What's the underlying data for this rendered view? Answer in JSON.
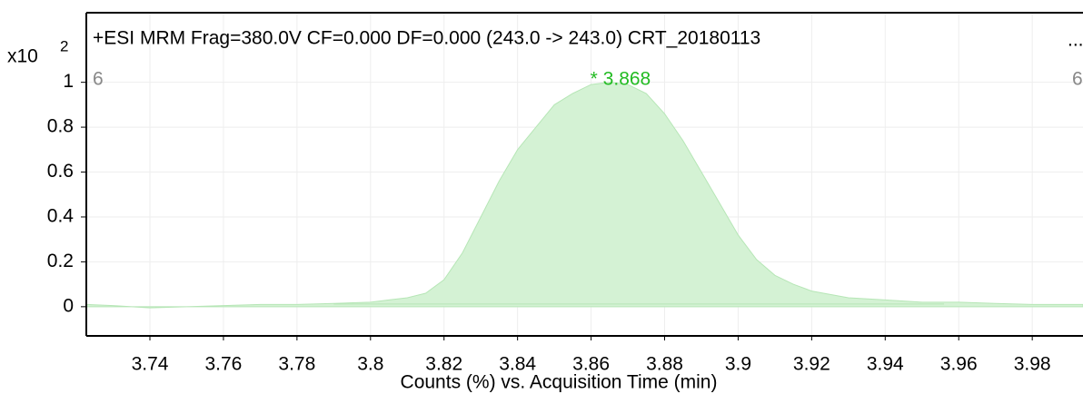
{
  "chart_data": {
    "type": "area",
    "title": "+ESI MRM Frag=380.0V CF=0.000 DF=0.000 (243.0 -> 243.0) CRT_20180113",
    "title_more": "...",
    "xlabel": "Counts (%) vs. Acquisition Time (min)",
    "y_multiplier": "x10",
    "y_exponent": "2",
    "left_label": "6",
    "right_label": "6",
    "peak_label": "* 3.868",
    "peak_x": 3.868,
    "color": "#d4f2d4",
    "line_color": "#b6e6b6",
    "peak_color": "#22bb22",
    "grid": true,
    "x": [
      3.7227,
      3.73,
      3.74,
      3.75,
      3.76,
      3.77,
      3.78,
      3.79,
      3.8,
      3.805,
      3.81,
      3.815,
      3.82,
      3.825,
      3.83,
      3.835,
      3.84,
      3.845,
      3.85,
      3.855,
      3.86,
      3.865,
      3.87,
      3.875,
      3.88,
      3.885,
      3.89,
      3.895,
      3.9,
      3.905,
      3.91,
      3.915,
      3.92,
      3.93,
      3.94,
      3.95,
      3.96,
      3.97,
      3.98,
      3.9938
    ],
    "values": [
      0.01,
      0.005,
      -0.005,
      0.0,
      0.005,
      0.01,
      0.01,
      0.015,
      0.02,
      0.03,
      0.04,
      0.06,
      0.12,
      0.24,
      0.4,
      0.56,
      0.7,
      0.8,
      0.9,
      0.95,
      0.99,
      1.0,
      0.99,
      0.95,
      0.86,
      0.74,
      0.6,
      0.46,
      0.32,
      0.21,
      0.14,
      0.1,
      0.07,
      0.04,
      0.03,
      0.02,
      0.02,
      0.015,
      0.01,
      0.01
    ],
    "xlim": [
      3.7227,
      3.9938
    ],
    "ylim": [
      -0.13,
      1.31
    ],
    "xticks": [
      3.74,
      3.76,
      3.78,
      3.8,
      3.82,
      3.84,
      3.86,
      3.88,
      3.9,
      3.92,
      3.94,
      3.96,
      3.98
    ],
    "yticks": [
      0,
      0.2,
      0.4,
      0.6,
      0.8,
      1
    ]
  }
}
